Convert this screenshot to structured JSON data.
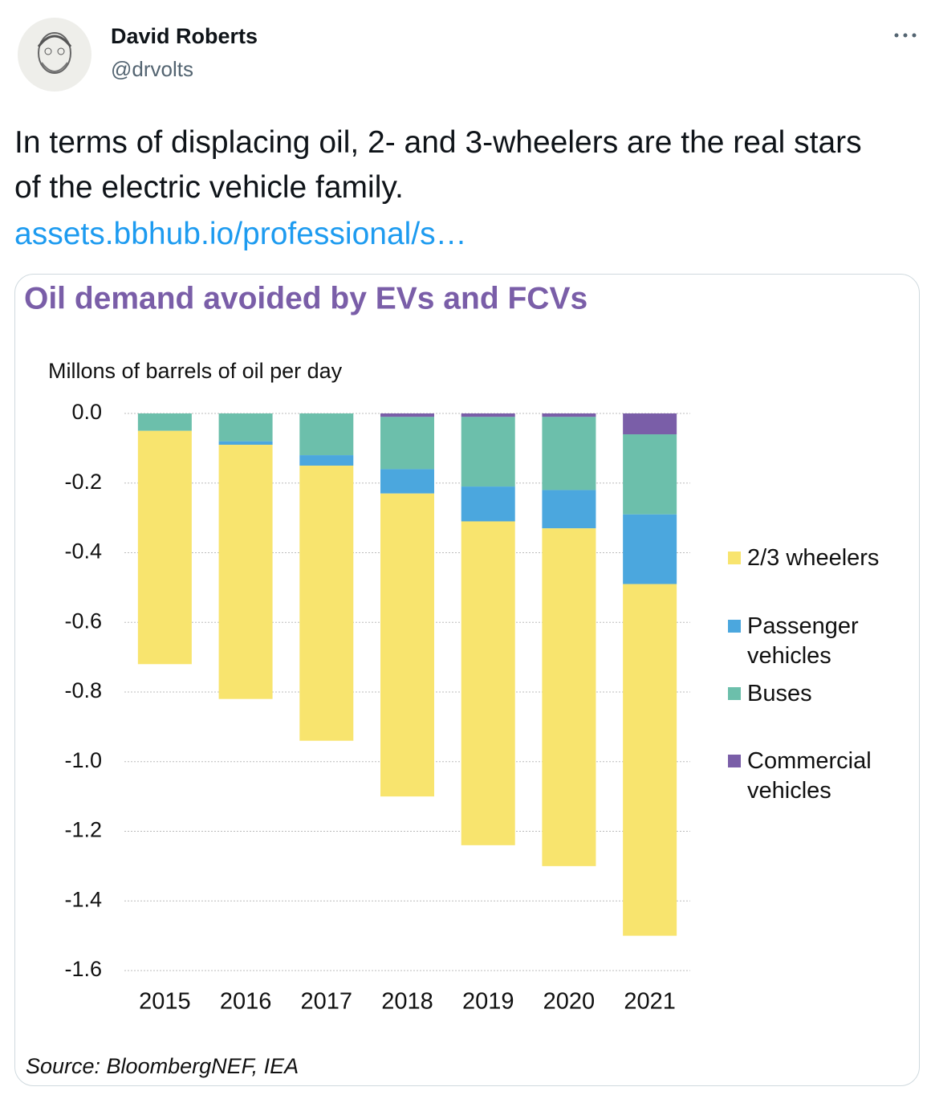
{
  "tweet": {
    "name": "David Roberts",
    "handle": "@drvolts",
    "text": "In terms of displacing oil, 2- and 3-wheelers are the real stars of the electric vehicle family.",
    "link": "assets.bbhub.io/professional/s…"
  },
  "chart_data": {
    "type": "stacked-bar",
    "title": "Oil demand avoided by EVs and FCVs",
    "y_label": "Millons of barrels of oil per day",
    "source": "Source: BloombergNEF, IEA",
    "categories": [
      "2015",
      "2016",
      "2017",
      "2018",
      "2019",
      "2020",
      "2021"
    ],
    "series": [
      {
        "name": "2/3 wheelers",
        "color": "#f8e46e",
        "values": [
          -0.67,
          -0.73,
          -0.79,
          -0.87,
          -0.93,
          -0.97,
          -1.01
        ]
      },
      {
        "name": "Passenger vehicles",
        "color": "#4ba7de",
        "values": [
          0,
          -0.01,
          -0.03,
          -0.07,
          -0.1,
          -0.11,
          -0.2
        ]
      },
      {
        "name": "Buses",
        "color": "#6cbfab",
        "values": [
          -0.05,
          -0.08,
          -0.12,
          -0.15,
          -0.2,
          -0.21,
          -0.23
        ]
      },
      {
        "name": "Commercial vehicles",
        "color": "#7a5ea8",
        "values": [
          0,
          0,
          0,
          -0.01,
          -0.01,
          -0.01,
          -0.06
        ]
      }
    ],
    "ylim": [
      -1.6,
      0
    ],
    "yticks": [
      {
        "value": 0,
        "label": "0.0"
      },
      -0.2,
      -0.4,
      -0.6,
      -0.8,
      {
        "value": -1,
        "label": "-1.0"
      },
      -1.2,
      -1.4,
      -1.6
    ],
    "grid": true,
    "legend": "right"
  }
}
